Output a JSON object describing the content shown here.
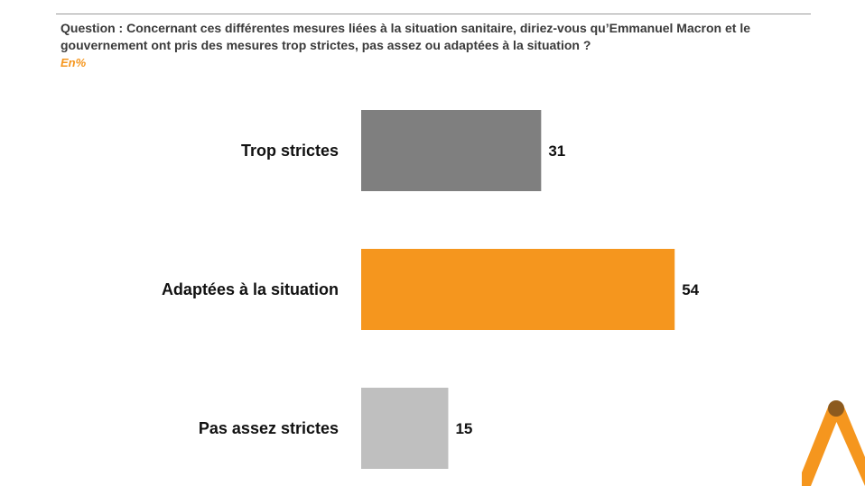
{
  "header": {
    "question": "Question : Concernant ces différentes mesures liées à la situation sanitaire, diriez-vous qu’Emmanuel Macron et le gouvernement ont pris des mesures trop strictes, pas assez ou adaptées à la situation ?",
    "unit": "En%"
  },
  "chart_data": {
    "type": "bar",
    "orientation": "horizontal",
    "categories": [
      "Trop strictes",
      "Adaptées à la situation",
      "Pas assez strictes"
    ],
    "values": [
      31,
      54,
      15
    ],
    "colors": [
      "#7f7f7f",
      "#f5961e",
      "#bfbfbf"
    ],
    "xlim": [
      0,
      100
    ],
    "grid": false,
    "legend": "none"
  },
  "branding": {
    "logo_icon": "brand-logo-icon",
    "accent": "#f5961e",
    "accent_dark": "#8c5a1e"
  }
}
